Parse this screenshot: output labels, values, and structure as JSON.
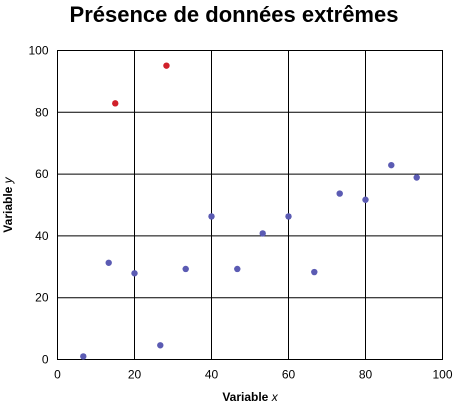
{
  "chart_data": {
    "type": "scatter",
    "title": "Présence de données extrêmes",
    "xlabel": "Variable x",
    "ylabel": "Variable y",
    "xlim": [
      0,
      100
    ],
    "ylim": [
      0,
      100
    ],
    "x_ticks": [
      "0",
      "20",
      "40",
      "60",
      "80",
      "100"
    ],
    "y_ticks": [
      "0",
      "20",
      "40",
      "60",
      "80",
      "100"
    ],
    "grid": true,
    "series": [
      {
        "color": "#5b5bb3",
        "points": [
          {
            "x": 6.7,
            "y": 1
          },
          {
            "x": 13.3,
            "y": 31.3
          },
          {
            "x": 20,
            "y": 27.9
          },
          {
            "x": 26.7,
            "y": 4.6
          },
          {
            "x": 33.3,
            "y": 29.3
          },
          {
            "x": 40,
            "y": 46.3
          },
          {
            "x": 46.7,
            "y": 29.3
          },
          {
            "x": 53.3,
            "y": 40.8
          },
          {
            "x": 60,
            "y": 46.3
          },
          {
            "x": 66.7,
            "y": 28.3
          },
          {
            "x": 73.3,
            "y": 53.7
          },
          {
            "x": 80,
            "y": 51.7
          },
          {
            "x": 86.7,
            "y": 62.9
          },
          {
            "x": 93.3,
            "y": 58.9
          }
        ]
      },
      {
        "color": "#d0202a",
        "points": [
          {
            "x": 15,
            "y": 82.9
          },
          {
            "x": 28.3,
            "y": 95.1
          }
        ]
      }
    ]
  }
}
